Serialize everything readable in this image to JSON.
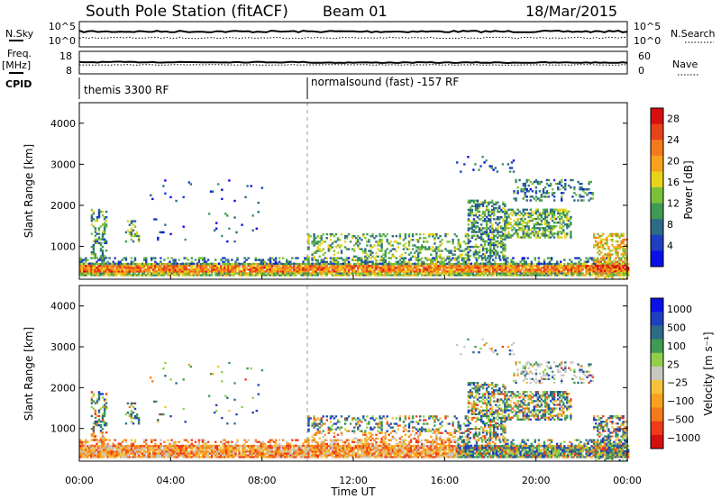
{
  "header": {
    "station": "South Pole Station (fitACF)",
    "beam": "Beam 01",
    "date": "18/Mar/2015"
  },
  "left_labels": {
    "nsky": "N.Sky",
    "freq": "Freq.",
    "freq_unit": "[MHz]",
    "cpid": "CPID"
  },
  "right_labels": {
    "nsearch": "N.Search",
    "nave": "Nave"
  },
  "noise_panel": {
    "left_ticks": [
      "10^5",
      "10^0"
    ],
    "right_ticks": [
      "10^5",
      "10^0"
    ]
  },
  "freq_panel": {
    "left_ticks": [
      "18",
      "8"
    ],
    "right_ticks": [
      "60",
      "0"
    ]
  },
  "cpid_panel": {
    "segments": [
      {
        "label": "themis 3300 RF",
        "start_hour": 0
      },
      {
        "label": "normalsound (fast) -157 RF",
        "start_hour": 10
      }
    ]
  },
  "colors": {
    "power": [
      "#0a10e8",
      "#1e3fbf",
      "#2d6b86",
      "#3f9a55",
      "#7ac23a",
      "#e8d21a",
      "#f7a21c",
      "#f27a1c",
      "#e8421a",
      "#d61010"
    ],
    "velocity": [
      "#d61010",
      "#f03a1a",
      "#f57a1a",
      "#f7a21c",
      "#f5c23a",
      "#c8c8c0",
      "#8fcf4a",
      "#3f9a55",
      "#2d6b86",
      "#1e3fbf",
      "#0a10e8"
    ]
  },
  "chart_data": [
    {
      "type": "heatmap",
      "name": "power",
      "xlabel": "",
      "ylabel": "Slant Range [km]",
      "xlim": [
        0,
        24
      ],
      "ylim": [
        200,
        4500
      ],
      "yticks": [
        "1000",
        "2000",
        "3000",
        "4000"
      ],
      "colorbar_label": "Power [dB]",
      "colorbar_ticks": [
        "4",
        "8",
        "12",
        "16",
        "20",
        "24",
        "28"
      ],
      "clim": [
        0,
        30
      ]
    },
    {
      "type": "heatmap",
      "name": "velocity",
      "xlabel": "Time UT",
      "ylabel": "Slant Range [km]",
      "xlim": [
        0,
        24
      ],
      "ylim": [
        200,
        4500
      ],
      "xticks": [
        "00:00",
        "04:00",
        "08:00",
        "12:00",
        "16:00",
        "20:00",
        "00:00"
      ],
      "yticks": [
        "1000",
        "2000",
        "3000",
        "4000"
      ],
      "colorbar_label": "Velocity [m s⁻¹]",
      "colorbar_ticks": [
        "1000",
        "500",
        "100",
        "25",
        "−25",
        "−100",
        "−500",
        "−1000"
      ]
    }
  ]
}
